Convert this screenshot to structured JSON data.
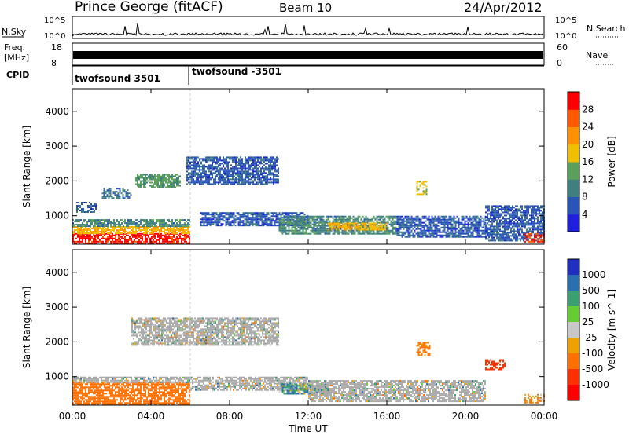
{
  "header": {
    "station": "Prince George (fitACF)",
    "beam": "Beam 10",
    "date": "24/Apr/2012"
  },
  "status_panels": {
    "nsky_label": "N.Sky",
    "nsearch_label": "N.Search",
    "freq_label_1": "Freq.",
    "freq_label_2": "[MHz]",
    "nave_label": "Nave",
    "cpid_label": "CPID",
    "noise_left_ticks": [
      "10^5",
      "10^0"
    ],
    "noise_right_ticks": [
      "10^5",
      "10^0"
    ],
    "freq_left_ticks": [
      "18",
      "8"
    ],
    "freq_right_ticks": [
      "60",
      "0"
    ],
    "cpid_entries": [
      {
        "label": "twofsound 3501",
        "start_hour": 0
      },
      {
        "label": "twofsound -3501",
        "start_hour": 6
      }
    ]
  },
  "colors": {
    "power_scale": [
      "#1f1fe0",
      "#2a55b8",
      "#3f7f7f",
      "#5aa05a",
      "#f0c000",
      "#ff9000",
      "#ff5a00",
      "#ff0000"
    ],
    "velocity_scale": [
      "#1f2fc0",
      "#2a6fb0",
      "#3aa070",
      "#66cc33",
      "#c8c8c8",
      "#f0a000",
      "#ff7000",
      "#ff3000",
      "#ff0000"
    ],
    "groundscatter": "#aaaaaa"
  },
  "chart_data": [
    {
      "type": "heatmap",
      "title": "",
      "xlabel": "",
      "ylabel": "Slant Range [km]",
      "x_ticks": [
        "00:00",
        "04:00",
        "08:00",
        "12:00",
        "16:00",
        "20:00",
        "00:00"
      ],
      "y_ticks": [
        "1000",
        "2000",
        "3000",
        "4000"
      ],
      "xlim_hours": [
        0,
        24
      ],
      "ylim_km": [
        180,
        4650
      ],
      "colorbar": {
        "label": "Power [dB]",
        "ticks": [
          "4",
          "8",
          "12",
          "16",
          "20",
          "24",
          "28"
        ],
        "range": [
          0,
          30
        ]
      },
      "regions": [
        {
          "t0": 0.0,
          "t1": 6.0,
          "r0": 200,
          "r1": 500,
          "value": 28
        },
        {
          "t0": 0.0,
          "t1": 6.0,
          "r0": 500,
          "r1": 700,
          "value": 18
        },
        {
          "t0": 0.0,
          "t1": 6.0,
          "r0": 700,
          "r1": 900,
          "value": 10
        },
        {
          "t0": 0.2,
          "t1": 1.2,
          "r0": 1100,
          "r1": 1400,
          "value": 6
        },
        {
          "t0": 1.5,
          "t1": 3.0,
          "r0": 1500,
          "r1": 1800,
          "value": 8
        },
        {
          "t0": 3.2,
          "t1": 5.5,
          "r0": 1800,
          "r1": 2200,
          "value": 12
        },
        {
          "t0": 5.8,
          "t1": 10.5,
          "r0": 1900,
          "r1": 2700,
          "value": 6
        },
        {
          "t0": 6.5,
          "t1": 12.0,
          "r0": 700,
          "r1": 1100,
          "value": 6
        },
        {
          "t0": 10.5,
          "t1": 16.5,
          "r0": 500,
          "r1": 1000,
          "value": 10
        },
        {
          "t0": 13.0,
          "t1": 16.0,
          "r0": 600,
          "r1": 800,
          "value": 18
        },
        {
          "t0": 16.5,
          "t1": 21.0,
          "r0": 400,
          "r1": 1000,
          "value": 6
        },
        {
          "t0": 17.5,
          "t1": 18.0,
          "r0": 1600,
          "r1": 2000,
          "value": 16
        },
        {
          "t0": 21.0,
          "t1": 24.0,
          "r0": 300,
          "r1": 1300,
          "value": 6
        },
        {
          "t0": 23.0,
          "t1": 24.0,
          "r0": 250,
          "r1": 500,
          "value": 26
        }
      ]
    },
    {
      "type": "heatmap",
      "title": "",
      "xlabel": "Time UT",
      "ylabel": "Slant Range [km]",
      "x_ticks": [
        "00:00",
        "04:00",
        "08:00",
        "12:00",
        "16:00",
        "20:00",
        "00:00"
      ],
      "y_ticks": [
        "1000",
        "2000",
        "3000",
        "4000"
      ],
      "xlim_hours": [
        0,
        24
      ],
      "ylim_km": [
        180,
        4650
      ],
      "colorbar": {
        "label": "Velocity [m s^-1]",
        "ticks": [
          "1000",
          "500",
          "100",
          "25",
          "-25",
          "-100",
          "-500",
          "-1000"
        ],
        "range": [
          -1200,
          1200
        ]
      },
      "regions": [
        {
          "t0": 0.0,
          "t1": 6.0,
          "r0": 200,
          "r1": 850,
          "value": -300
        },
        {
          "t0": 0.0,
          "t1": 6.0,
          "r0": 850,
          "r1": 1000,
          "value": 0,
          "ground": true
        },
        {
          "t0": 3.0,
          "t1": 10.5,
          "r0": 1900,
          "r1": 2700,
          "value": 0,
          "ground": true
        },
        {
          "t0": 6.0,
          "t1": 12.0,
          "r0": 600,
          "r1": 1000,
          "value": 0,
          "ground": true
        },
        {
          "t0": 10.5,
          "t1": 13.0,
          "r0": 500,
          "r1": 800,
          "value": 80
        },
        {
          "t0": 12.0,
          "t1": 21.0,
          "r0": 300,
          "r1": 900,
          "value": 0,
          "ground": true
        },
        {
          "t0": 17.5,
          "t1": 18.2,
          "r0": 1600,
          "r1": 2000,
          "value": -200
        },
        {
          "t0": 21.0,
          "t1": 22.0,
          "r0": 1200,
          "r1": 1500,
          "value": -800
        },
        {
          "t0": 23.0,
          "t1": 24.0,
          "r0": 250,
          "r1": 500,
          "value": -150
        }
      ]
    }
  ]
}
